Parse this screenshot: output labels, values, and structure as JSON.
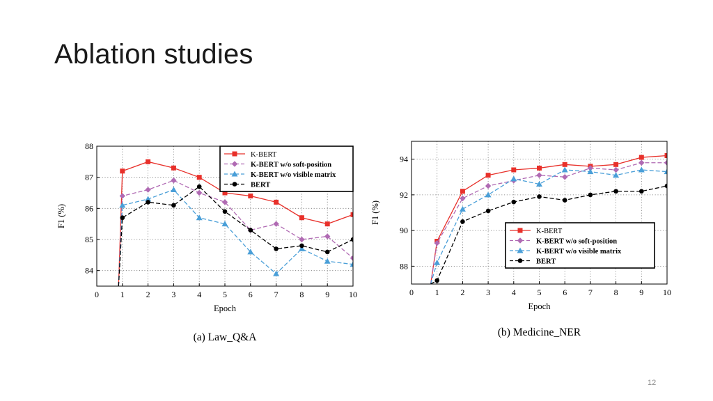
{
  "slide": {
    "title": "Ablation studies",
    "page_number": "12"
  },
  "chart_data": [
    {
      "type": "line",
      "title": "",
      "caption": "(a) Law_Q&A",
      "xlabel": "Epoch",
      "ylabel": "F1 (%)",
      "xlim": [
        0,
        10
      ],
      "ylim": [
        83.5,
        88
      ],
      "xticks": [
        0,
        1,
        2,
        3,
        4,
        5,
        6,
        7,
        8,
        9,
        10
      ],
      "yticks": [
        84,
        85,
        86,
        87,
        88
      ],
      "grid": true,
      "legend_position": "top-right",
      "x": [
        1,
        2,
        3,
        4,
        5,
        6,
        7,
        8,
        9,
        10
      ],
      "series": [
        {
          "name": "K-BERT",
          "color": "#e8302a",
          "marker": "square",
          "dash": "solid",
          "start_value": 83.5,
          "values": [
            87.2,
            87.5,
            87.3,
            87.0,
            86.5,
            86.4,
            86.2,
            85.7,
            85.5,
            85.8
          ]
        },
        {
          "name": "K-BERT w/o soft-position",
          "color": "#b06ab3",
          "marker": "diamond",
          "dash": "dashed",
          "start_value": 83.5,
          "values": [
            86.4,
            86.6,
            86.9,
            86.5,
            86.2,
            85.3,
            85.5,
            85.0,
            85.1,
            84.4
          ]
        },
        {
          "name": "K-BERT w/o visible matrix",
          "color": "#4a9fd8",
          "marker": "triangle",
          "dash": "dashed",
          "start_value": 83.5,
          "values": [
            86.1,
            86.3,
            86.6,
            85.7,
            85.5,
            84.6,
            83.9,
            84.7,
            84.3,
            84.2
          ]
        },
        {
          "name": "BERT",
          "color": "#000000",
          "marker": "circle",
          "dash": "dashed",
          "start_value": 83.5,
          "values": [
            85.7,
            86.2,
            86.1,
            86.7,
            85.9,
            85.3,
            84.7,
            84.8,
            84.6,
            85.0
          ]
        }
      ]
    },
    {
      "type": "line",
      "title": "",
      "caption": "(b) Medicine_NER",
      "xlabel": "Epoch",
      "ylabel": "F1 (%)",
      "xlim": [
        0,
        10
      ],
      "ylim": [
        87,
        95
      ],
      "xticks": [
        0,
        1,
        2,
        3,
        4,
        5,
        6,
        7,
        8,
        9,
        10
      ],
      "yticks": [
        88,
        90,
        92,
        94
      ],
      "grid": true,
      "legend_position": "bottom-right",
      "x": [
        1,
        2,
        3,
        4,
        5,
        6,
        7,
        8,
        9,
        10
      ],
      "series": [
        {
          "name": "K-BERT",
          "color": "#e8302a",
          "marker": "square",
          "dash": "solid",
          "start_value": 87,
          "values": [
            89.4,
            92.2,
            93.1,
            93.4,
            93.5,
            93.7,
            93.6,
            93.7,
            94.1,
            94.2
          ]
        },
        {
          "name": "K-BERT w/o soft-position",
          "color": "#b06ab3",
          "marker": "diamond",
          "dash": "dashed",
          "start_value": 87,
          "values": [
            89.3,
            91.8,
            92.5,
            92.8,
            93.1,
            93.0,
            93.5,
            93.4,
            93.8,
            93.8
          ]
        },
        {
          "name": "K-BERT w/o visible matrix",
          "color": "#4a9fd8",
          "marker": "triangle",
          "dash": "dashed",
          "start_value": 87,
          "values": [
            88.2,
            91.2,
            92.0,
            92.9,
            92.6,
            93.4,
            93.3,
            93.1,
            93.4,
            93.3
          ]
        },
        {
          "name": "BERT",
          "color": "#000000",
          "marker": "circle",
          "dash": "dashed",
          "start_value": 87,
          "values": [
            87.2,
            90.5,
            91.1,
            91.6,
            91.9,
            91.7,
            92.0,
            92.2,
            92.2,
            92.5
          ]
        }
      ]
    }
  ]
}
